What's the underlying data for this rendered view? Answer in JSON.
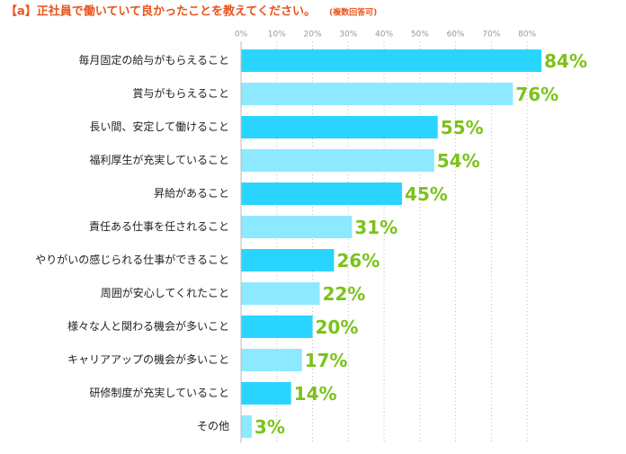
{
  "chart_data": {
    "type": "hbar",
    "title": "【a】正社員で働いていて良かったことを教えてください。",
    "subtitle": "(複数回答可)",
    "categories": [
      "毎月固定の給与がもらえること",
      "賞与がもらえること",
      "長い間、安定して働けること",
      "福利厚生が充実していること",
      "昇給があること",
      "責任ある仕事を任されること",
      "やりがいの感じられる仕事ができること",
      "周囲が安心してくれたこと",
      "様々な人と関わる機会が多いこと",
      "キャリアアップの機会が多いこと",
      "研修制度が充実していること",
      "その他"
    ],
    "values": [
      84,
      76,
      55,
      54,
      45,
      31,
      26,
      22,
      20,
      17,
      14,
      3
    ],
    "value_labels": [
      "84%",
      "76%",
      "55%",
      "54%",
      "45%",
      "31%",
      "26%",
      "22%",
      "20%",
      "17%",
      "14%",
      "3%"
    ],
    "colors": [
      "#29d5ff",
      "#8ce9ff"
    ],
    "label_color": "#7cc21b",
    "xlim": [
      0,
      85
    ],
    "xticks": [
      {
        "value": 0,
        "label": "0%"
      },
      {
        "value": 10,
        "label": "10%"
      },
      {
        "value": 20,
        "label": "20%"
      },
      {
        "value": 30,
        "label": "30%"
      },
      {
        "value": 40,
        "label": "40%"
      },
      {
        "value": 50,
        "label": "50%"
      },
      {
        "value": 60,
        "label": "60%"
      },
      {
        "value": 70,
        "label": "70%"
      },
      {
        "value": 80,
        "label": "80%"
      }
    ],
    "grid": true
  }
}
